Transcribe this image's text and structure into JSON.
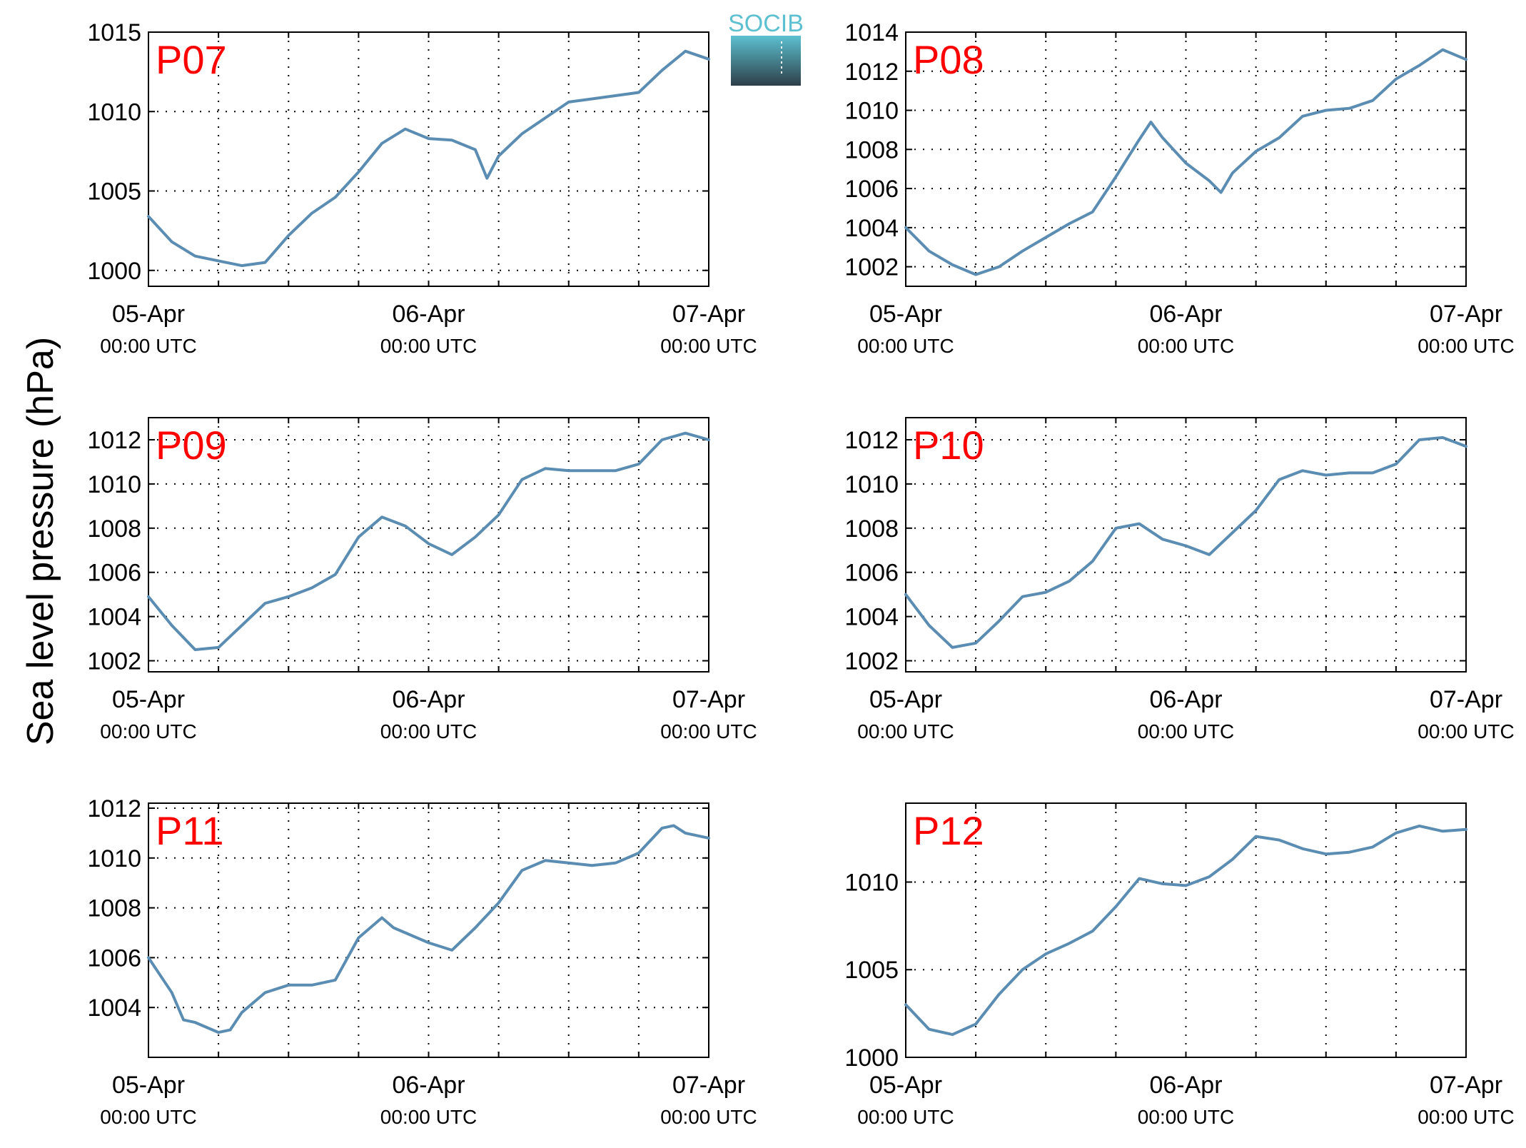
{
  "figure": {
    "ylabel": "Sea level pressure (hPa)",
    "logo_text": "SOCIB"
  },
  "colors": {
    "series_line": "#5b8db3",
    "panel_label": "#ff0000",
    "logo_top": "#5cc0d0",
    "logo_bottom": "#2e3f48"
  },
  "chart_data": [
    {
      "type": "line",
      "panel": "P07",
      "ylim": [
        999,
        1015
      ],
      "yticks": [
        1000,
        1005,
        1010,
        1015
      ],
      "xticks": [
        {
          "date": "05-Apr",
          "time": "00:00 UTC"
        },
        {
          "date": "06-Apr",
          "time": "00:00 UTC"
        },
        {
          "date": "07-Apr",
          "time": "00:00 UTC"
        }
      ],
      "grid": true,
      "x_hours": [
        0,
        2,
        4,
        6,
        8,
        10,
        12,
        14,
        16,
        18,
        20,
        22,
        24,
        26,
        28,
        29,
        30,
        32,
        34,
        36,
        38,
        40,
        42,
        44,
        46,
        48
      ],
      "values": [
        1003.4,
        1001.8,
        1000.9,
        1000.6,
        1000.3,
        1000.5,
        1002.2,
        1003.6,
        1004.6,
        1006.2,
        1008.0,
        1008.9,
        1008.3,
        1008.2,
        1007.6,
        1005.8,
        1007.2,
        1008.6,
        1009.6,
        1010.6,
        1010.8,
        1011.0,
        1011.2,
        1012.6,
        1013.8,
        1013.3
      ]
    },
    {
      "type": "line",
      "panel": "P08",
      "ylim": [
        1001,
        1014
      ],
      "yticks": [
        1002,
        1004,
        1006,
        1008,
        1010,
        1012,
        1014
      ],
      "xticks": [
        {
          "date": "05-Apr",
          "time": "00:00 UTC"
        },
        {
          "date": "06-Apr",
          "time": "00:00 UTC"
        },
        {
          "date": "07-Apr",
          "time": "00:00 UTC"
        }
      ],
      "grid": true,
      "x_hours": [
        0,
        2,
        4,
        6,
        8,
        10,
        12,
        14,
        16,
        18,
        20,
        21,
        22,
        24,
        26,
        27,
        28,
        30,
        32,
        34,
        36,
        38,
        40,
        42,
        44,
        46,
        48
      ],
      "values": [
        1004.0,
        1002.8,
        1002.1,
        1001.6,
        1002.0,
        1002.8,
        1003.5,
        1004.2,
        1004.8,
        1006.6,
        1008.5,
        1009.4,
        1008.6,
        1007.3,
        1006.4,
        1005.8,
        1006.8,
        1007.9,
        1008.6,
        1009.7,
        1010.0,
        1010.1,
        1010.5,
        1011.6,
        1012.3,
        1013.1,
        1012.6
      ]
    },
    {
      "type": "line",
      "panel": "P09",
      "ylim": [
        1001.5,
        1013
      ],
      "yticks": [
        1002,
        1004,
        1006,
        1008,
        1010,
        1012
      ],
      "xticks": [
        {
          "date": "05-Apr",
          "time": "00:00 UTC"
        },
        {
          "date": "06-Apr",
          "time": "00:00 UTC"
        },
        {
          "date": "07-Apr",
          "time": "00:00 UTC"
        }
      ],
      "grid": true,
      "x_hours": [
        0,
        2,
        4,
        6,
        8,
        10,
        12,
        14,
        16,
        18,
        20,
        22,
        24,
        26,
        28,
        30,
        32,
        34,
        36,
        38,
        40,
        42,
        44,
        46,
        48
      ],
      "values": [
        1004.9,
        1003.6,
        1002.5,
        1002.6,
        1003.6,
        1004.6,
        1004.9,
        1005.3,
        1005.9,
        1007.6,
        1008.5,
        1008.1,
        1007.3,
        1006.8,
        1007.6,
        1008.6,
        1010.2,
        1010.7,
        1010.6,
        1010.6,
        1010.6,
        1010.9,
        1012.0,
        1012.3,
        1012.0
      ]
    },
    {
      "type": "line",
      "panel": "P10",
      "ylim": [
        1001.5,
        1013
      ],
      "yticks": [
        1002,
        1004,
        1006,
        1008,
        1010,
        1012
      ],
      "xticks": [
        {
          "date": "05-Apr",
          "time": "00:00 UTC"
        },
        {
          "date": "06-Apr",
          "time": "00:00 UTC"
        },
        {
          "date": "07-Apr",
          "time": "00:00 UTC"
        }
      ],
      "grid": true,
      "x_hours": [
        0,
        2,
        4,
        6,
        8,
        10,
        12,
        14,
        16,
        18,
        20,
        22,
        24,
        26,
        28,
        30,
        32,
        34,
        36,
        38,
        40,
        42,
        44,
        46,
        48
      ],
      "values": [
        1005.0,
        1003.6,
        1002.6,
        1002.8,
        1003.8,
        1004.9,
        1005.1,
        1005.6,
        1006.5,
        1008.0,
        1008.2,
        1007.5,
        1007.2,
        1006.8,
        1007.8,
        1008.8,
        1010.2,
        1010.6,
        1010.4,
        1010.5,
        1010.5,
        1010.9,
        1012.0,
        1012.1,
        1011.7
      ]
    },
    {
      "type": "line",
      "panel": "P11",
      "ylim": [
        1002,
        1012.2
      ],
      "yticks": [
        1004,
        1006,
        1008,
        1010,
        1012
      ],
      "xticks": [
        {
          "date": "05-Apr",
          "time": "00:00 UTC"
        },
        {
          "date": "06-Apr",
          "time": "00:00 UTC"
        },
        {
          "date": "07-Apr",
          "time": "00:00 UTC"
        }
      ],
      "grid": true,
      "x_hours": [
        0,
        2,
        3,
        4,
        6,
        7,
        8,
        10,
        12,
        14,
        16,
        18,
        20,
        21,
        22,
        24,
        26,
        28,
        30,
        32,
        34,
        36,
        38,
        40,
        42,
        44,
        45,
        46,
        48
      ],
      "values": [
        1006.0,
        1004.6,
        1003.5,
        1003.4,
        1003.0,
        1003.1,
        1003.8,
        1004.6,
        1004.9,
        1004.9,
        1005.1,
        1006.8,
        1007.6,
        1007.2,
        1007.0,
        1006.6,
        1006.3,
        1007.2,
        1008.2,
        1009.5,
        1009.9,
        1009.8,
        1009.7,
        1009.8,
        1010.2,
        1011.2,
        1011.3,
        1011.0,
        1010.8
      ]
    },
    {
      "type": "line",
      "panel": "P12",
      "ylim": [
        1000,
        1014.5
      ],
      "yticks": [
        1000,
        1005,
        1010
      ],
      "xticks": [
        {
          "date": "05-Apr",
          "time": "00:00 UTC"
        },
        {
          "date": "06-Apr",
          "time": "00:00 UTC"
        },
        {
          "date": "07-Apr",
          "time": "00:00 UTC"
        }
      ],
      "grid": true,
      "x_hours": [
        0,
        2,
        4,
        6,
        8,
        10,
        12,
        14,
        16,
        18,
        20,
        22,
        24,
        26,
        28,
        30,
        32,
        34,
        36,
        38,
        40,
        42,
        44,
        46,
        48
      ],
      "values": [
        1003.0,
        1001.6,
        1001.3,
        1001.9,
        1003.6,
        1005.0,
        1005.9,
        1006.5,
        1007.2,
        1008.6,
        1010.2,
        1009.9,
        1009.8,
        1010.3,
        1011.3,
        1012.6,
        1012.4,
        1011.9,
        1011.6,
        1011.7,
        1012.0,
        1012.8,
        1013.2,
        1012.9,
        1013.0
      ]
    }
  ]
}
